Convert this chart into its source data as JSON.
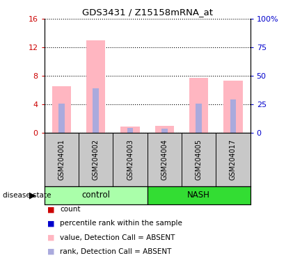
{
  "title": "GDS3431 / Z15158mRNA_at",
  "samples": [
    "GSM204001",
    "GSM204002",
    "GSM204003",
    "GSM204004",
    "GSM204005",
    "GSM204017"
  ],
  "pink_values": [
    6.5,
    13.0,
    0.9,
    1.0,
    7.7,
    7.3
  ],
  "blue_values": [
    4.1,
    6.2,
    0.7,
    0.55,
    4.1,
    4.7
  ],
  "ylim_left": [
    0,
    16
  ],
  "ylim_right": [
    0,
    100
  ],
  "yticks_left": [
    0,
    4,
    8,
    12,
    16
  ],
  "yticks_right": [
    0,
    25,
    50,
    75,
    100
  ],
  "ytick_labels_right": [
    "0",
    "25",
    "50",
    "75",
    "100%"
  ],
  "left_color": "#CC0000",
  "right_color": "#0000CC",
  "bg_color": "#C8C8C8",
  "pink_color": "#FFB6C1",
  "blue_color": "#AAAADD",
  "red_sq_color": "#CC0000",
  "blue_sq_color": "#0000CC",
  "ctrl_color": "#AAFFAA",
  "nash_color": "#33DD33",
  "fig_width": 4.11,
  "fig_height": 3.84,
  "dpi": 100
}
